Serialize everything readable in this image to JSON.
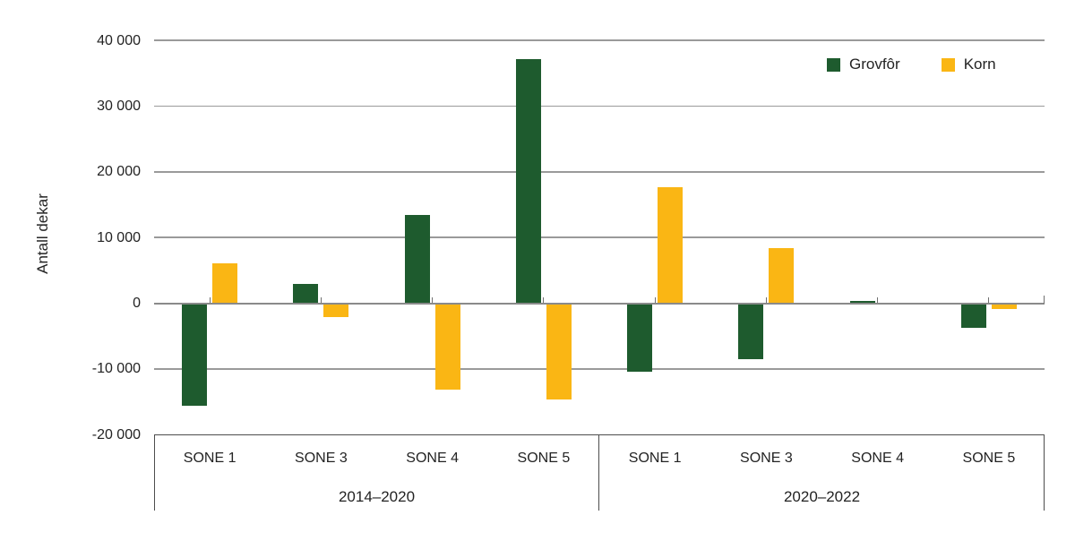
{
  "chart_data": {
    "type": "bar",
    "title": "",
    "ylabel": "Antall dekar",
    "ylim": [
      -20000,
      40000
    ],
    "grid": true,
    "legend_position": "top-right",
    "yticks": [
      {
        "value": -20000,
        "label": "-20 000"
      },
      {
        "value": -10000,
        "label": "-10 000"
      },
      {
        "value": 0,
        "label": "0"
      },
      {
        "value": 10000,
        "label": "10 000"
      },
      {
        "value": 20000,
        "label": "20 000"
      },
      {
        "value": 30000,
        "label": "30 000"
      },
      {
        "value": 40000,
        "label": "40 000"
      }
    ],
    "groups": [
      {
        "label": "2014–2020",
        "categories": [
          "SONE 1",
          "SONE 3",
          "SONE 4",
          "SONE 5"
        ]
      },
      {
        "label": "2020–2022",
        "categories": [
          "SONE 1",
          "SONE 3",
          "SONE 4",
          "SONE 5"
        ]
      }
    ],
    "series": [
      {
        "name": "Grovfôr",
        "color": "#1e5b2e",
        "values": [
          -15600,
          3000,
          13400,
          37200,
          -10400,
          -8500,
          300,
          -3700
        ]
      },
      {
        "name": "Korn",
        "color": "#fab614",
        "values": [
          6100,
          -2100,
          -13200,
          -14700,
          17700,
          8400,
          0,
          -900
        ]
      }
    ]
  },
  "colors": {
    "grovfor": "#1e5b2e",
    "korn": "#fab614",
    "gridline": "#9a9a9a",
    "zero_line": "#8a8a8a",
    "axis_border": "#4d4d4d",
    "text": "#232323"
  }
}
